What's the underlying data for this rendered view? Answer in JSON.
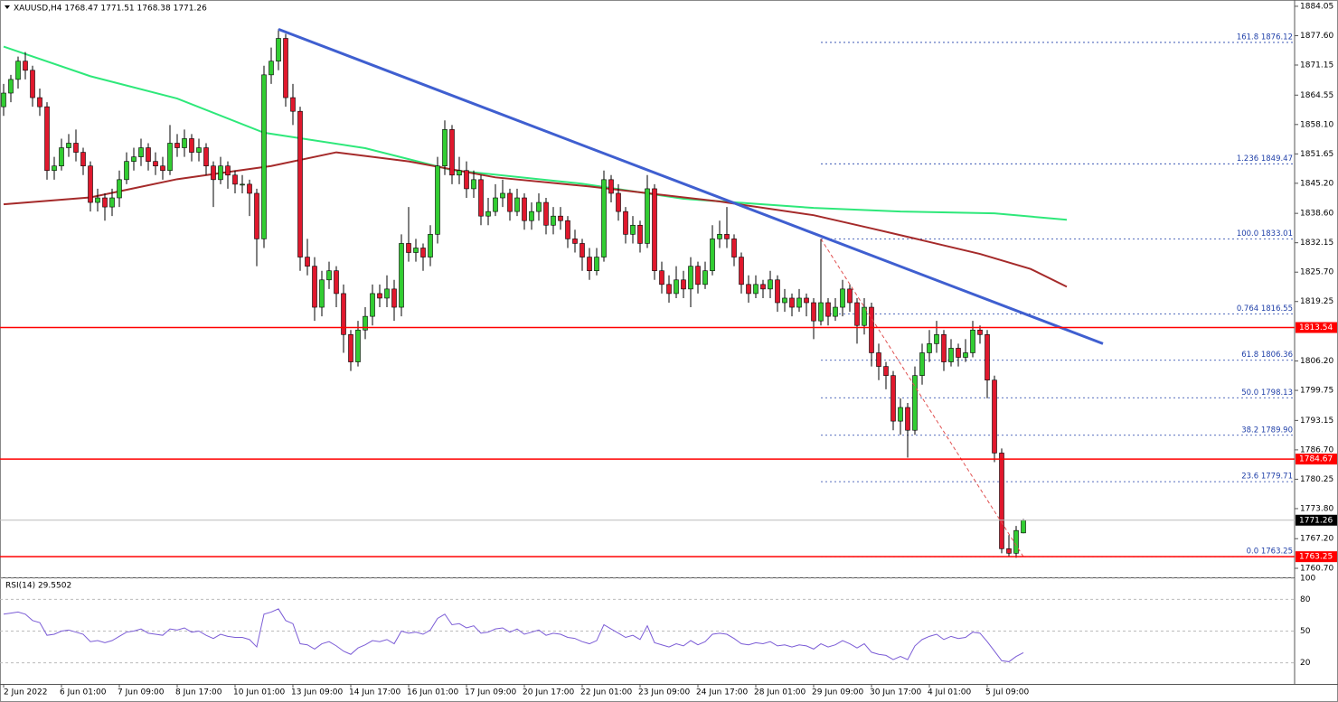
{
  "chart_data": {
    "type": "candlestick",
    "title": "XAUUSD,H4 1768.47 1771.51 1768.38 1771.26",
    "up_color": "#32cd32",
    "down_color": "#e0182d",
    "categories": [
      "2 Jun 2022",
      null,
      null,
      null,
      null,
      null,
      null,
      null,
      "6 Jun 01:00",
      null,
      null,
      null,
      null,
      null,
      null,
      null,
      "7 Jun 09:00",
      null,
      null,
      null,
      null,
      null,
      null,
      null,
      "8 Jun 17:00",
      null,
      null,
      null,
      null,
      null,
      null,
      null,
      "10 Jun 01:00",
      null,
      null,
      null,
      null,
      null,
      null,
      null,
      "13 Jun 09:00",
      null,
      null,
      null,
      null,
      null,
      null,
      null,
      "14 Jun 17:00",
      null,
      null,
      null,
      null,
      null,
      null,
      null,
      "16 Jun 01:00",
      null,
      null,
      null,
      null,
      null,
      null,
      null,
      "17 Jun 09:00",
      null,
      null,
      null,
      null,
      null,
      null,
      null,
      "20 Jun 17:00",
      null,
      null,
      null,
      null,
      null,
      null,
      null,
      "22 Jun 01:00",
      null,
      null,
      null,
      null,
      null,
      null,
      null,
      "23 Jun 09:00",
      null,
      null,
      null,
      null,
      null,
      null,
      null,
      "24 Jun 17:00",
      null,
      null,
      null,
      null,
      null,
      null,
      null,
      "28 Jun 01:00",
      null,
      null,
      null,
      null,
      null,
      null,
      null,
      "29 Jun 09:00",
      null,
      null,
      null,
      null,
      null,
      null,
      null,
      "30 Jun 17:00",
      null,
      null,
      null,
      null,
      null,
      null,
      null,
      "4 Jul 01:00",
      null,
      null,
      null,
      null,
      null,
      null,
      null,
      "5 Jul 09:00",
      null,
      null,
      null,
      null,
      null
    ],
    "ohlc": [
      [
        1862,
        1867,
        1860,
        1865
      ],
      [
        1865,
        1869,
        1863,
        1868
      ],
      [
        1868,
        1873,
        1866,
        1872
      ],
      [
        1872,
        1874,
        1868,
        1870
      ],
      [
        1870,
        1871,
        1862,
        1864
      ],
      [
        1864,
        1866,
        1860,
        1862
      ],
      [
        1862,
        1863,
        1846,
        1848
      ],
      [
        1848,
        1851,
        1846,
        1849
      ],
      [
        1849,
        1855,
        1848,
        1853
      ],
      [
        1853,
        1856,
        1851,
        1854
      ],
      [
        1854,
        1857,
        1850,
        1852
      ],
      [
        1852,
        1853,
        1847,
        1849
      ],
      [
        1849,
        1850,
        1839,
        1841
      ],
      [
        1841,
        1844,
        1839,
        1842
      ],
      [
        1842,
        1843,
        1837,
        1840
      ],
      [
        1840,
        1844,
        1838,
        1842
      ],
      [
        1842,
        1848,
        1840,
        1846
      ],
      [
        1846,
        1852,
        1845,
        1850
      ],
      [
        1850,
        1853,
        1848,
        1851
      ],
      [
        1851,
        1855,
        1849,
        1853
      ],
      [
        1853,
        1854,
        1848,
        1850
      ],
      [
        1850,
        1852,
        1847,
        1849
      ],
      [
        1849,
        1851,
        1846,
        1848
      ],
      [
        1848,
        1858,
        1847,
        1854
      ],
      [
        1854,
        1856,
        1851,
        1853
      ],
      [
        1853,
        1857,
        1851,
        1855
      ],
      [
        1855,
        1856,
        1850,
        1852
      ],
      [
        1852,
        1855,
        1850,
        1853
      ],
      [
        1853,
        1854,
        1847,
        1849
      ],
      [
        1849,
        1850,
        1840,
        1846
      ],
      [
        1846,
        1851,
        1845,
        1849
      ],
      [
        1849,
        1850,
        1844,
        1847
      ],
      [
        1847,
        1848,
        1843,
        1845
      ],
      [
        1845,
        1847,
        1843,
        1845
      ],
      [
        1845,
        1846,
        1838,
        1843
      ],
      [
        1843,
        1844,
        1827,
        1833
      ],
      [
        1833,
        1871,
        1831,
        1869
      ],
      [
        1869,
        1875,
        1867,
        1872
      ],
      [
        1872,
        1879,
        1870,
        1877
      ],
      [
        1877,
        1878,
        1862,
        1864
      ],
      [
        1864,
        1867,
        1858,
        1861
      ],
      [
        1861,
        1862,
        1826,
        1829
      ],
      [
        1829,
        1833,
        1825,
        1827
      ],
      [
        1827,
        1829,
        1815,
        1818
      ],
      [
        1818,
        1826,
        1816,
        1824
      ],
      [
        1824,
        1828,
        1822,
        1826
      ],
      [
        1826,
        1827,
        1818,
        1821
      ],
      [
        1821,
        1823,
        1808,
        1812
      ],
      [
        1812,
        1813,
        1804,
        1806
      ],
      [
        1806,
        1815,
        1805,
        1813
      ],
      [
        1813,
        1818,
        1811,
        1816
      ],
      [
        1816,
        1823,
        1814,
        1821
      ],
      [
        1821,
        1823,
        1818,
        1820
      ],
      [
        1820,
        1825,
        1818,
        1822
      ],
      [
        1822,
        1824,
        1815,
        1818
      ],
      [
        1818,
        1834,
        1816,
        1832
      ],
      [
        1832,
        1840,
        1828,
        1830
      ],
      [
        1830,
        1833,
        1828,
        1831
      ],
      [
        1831,
        1832,
        1826,
        1829
      ],
      [
        1829,
        1836,
        1827,
        1834
      ],
      [
        1834,
        1851,
        1832,
        1849
      ],
      [
        1849,
        1859,
        1847,
        1857
      ],
      [
        1857,
        1858,
        1845,
        1847
      ],
      [
        1847,
        1851,
        1845,
        1848
      ],
      [
        1848,
        1850,
        1842,
        1844
      ],
      [
        1844,
        1848,
        1842,
        1846
      ],
      [
        1846,
        1847,
        1836,
        1838
      ],
      [
        1838,
        1842,
        1836,
        1839
      ],
      [
        1839,
        1845,
        1838,
        1842
      ],
      [
        1842,
        1846,
        1840,
        1843
      ],
      [
        1843,
        1844,
        1837,
        1839
      ],
      [
        1839,
        1844,
        1838,
        1842
      ],
      [
        1842,
        1843,
        1835,
        1837
      ],
      [
        1837,
        1841,
        1835,
        1839
      ],
      [
        1839,
        1843,
        1837,
        1841
      ],
      [
        1841,
        1842,
        1834,
        1836
      ],
      [
        1836,
        1840,
        1834,
        1838
      ],
      [
        1838,
        1840,
        1835,
        1837
      ],
      [
        1837,
        1838,
        1831,
        1833
      ],
      [
        1833,
        1835,
        1830,
        1832
      ],
      [
        1832,
        1833,
        1826,
        1829
      ],
      [
        1829,
        1831,
        1824,
        1826
      ],
      [
        1826,
        1831,
        1825,
        1829
      ],
      [
        1829,
        1848,
        1828,
        1846
      ],
      [
        1846,
        1847,
        1841,
        1843
      ],
      [
        1843,
        1845,
        1837,
        1839
      ],
      [
        1839,
        1840,
        1832,
        1834
      ],
      [
        1834,
        1838,
        1832,
        1836
      ],
      [
        1836,
        1837,
        1830,
        1832
      ],
      [
        1832,
        1847,
        1831,
        1844
      ],
      [
        1844,
        1845,
        1824,
        1826
      ],
      [
        1826,
        1828,
        1821,
        1823
      ],
      [
        1823,
        1825,
        1819,
        1821
      ],
      [
        1821,
        1827,
        1820,
        1824
      ],
      [
        1824,
        1826,
        1820,
        1822
      ],
      [
        1822,
        1829,
        1818,
        1827
      ],
      [
        1827,
        1828,
        1821,
        1823
      ],
      [
        1823,
        1828,
        1822,
        1826
      ],
      [
        1826,
        1836,
        1825,
        1833
      ],
      [
        1833,
        1837,
        1831,
        1834
      ],
      [
        1834,
        1840,
        1831,
        1833
      ],
      [
        1833,
        1834,
        1827,
        1829
      ],
      [
        1829,
        1830,
        1821,
        1823
      ],
      [
        1823,
        1825,
        1819,
        1821
      ],
      [
        1821,
        1825,
        1820,
        1823
      ],
      [
        1823,
        1824,
        1820,
        1822
      ],
      [
        1822,
        1826,
        1820,
        1824
      ],
      [
        1824,
        1825,
        1817,
        1819
      ],
      [
        1819,
        1822,
        1817,
        1820
      ],
      [
        1820,
        1821,
        1816,
        1818
      ],
      [
        1818,
        1822,
        1817,
        1820
      ],
      [
        1820,
        1821,
        1816,
        1819
      ],
      [
        1819,
        1820,
        1811,
        1815
      ],
      [
        1815,
        1833,
        1814,
        1819
      ],
      [
        1819,
        1820,
        1814,
        1816
      ],
      [
        1816,
        1820,
        1815,
        1818
      ],
      [
        1818,
        1824,
        1816,
        1822
      ],
      [
        1822,
        1823,
        1817,
        1819
      ],
      [
        1819,
        1820,
        1810,
        1814
      ],
      [
        1814,
        1820,
        1812,
        1818
      ],
      [
        1818,
        1819,
        1805,
        1808
      ],
      [
        1808,
        1810,
        1802,
        1805
      ],
      [
        1805,
        1806,
        1800,
        1803
      ],
      [
        1803,
        1804,
        1791,
        1793
      ],
      [
        1793,
        1798,
        1790,
        1796
      ],
      [
        1796,
        1797,
        1785,
        1791
      ],
      [
        1791,
        1805,
        1790,
        1803
      ],
      [
        1803,
        1810,
        1801,
        1808
      ],
      [
        1808,
        1813,
        1806,
        1810
      ],
      [
        1810,
        1815,
        1808,
        1812
      ],
      [
        1812,
        1813,
        1804,
        1806
      ],
      [
        1806,
        1811,
        1805,
        1809
      ],
      [
        1809,
        1810,
        1805,
        1807
      ],
      [
        1807,
        1811,
        1806,
        1808
      ],
      [
        1808,
        1815,
        1807,
        1813
      ],
      [
        1813,
        1814,
        1810,
        1812
      ],
      [
        1812,
        1813,
        1798,
        1802
      ],
      [
        1802,
        1803,
        1784,
        1786
      ],
      [
        1786,
        1787,
        1764,
        1765
      ],
      [
        1765,
        1768,
        1763.25,
        1764
      ],
      [
        1764,
        1770,
        1763,
        1769
      ],
      [
        1768.47,
        1771.51,
        1768.38,
        1771.26
      ]
    ],
    "ylim": [
      1758.92,
      1885.03
    ],
    "yticks": [
      1884.05,
      {
        "value": 1877.6,
        "label": "1877.60"
      },
      1871.15,
      1864.55,
      {
        "value": 1858.1,
        "label": "1858.10"
      },
      1851.65,
      {
        "value": 1845.2,
        "label": "1845.20"
      },
      {
        "value": 1838.6,
        "label": "1838.60"
      },
      1832.15,
      {
        "value": 1825.7,
        "label": "1825.70"
      },
      1819.25,
      {
        "value": 1806.2,
        "label": "1806.20"
      },
      1799.75,
      1793.15,
      {
        "value": 1786.7,
        "label": "1786.70"
      },
      1780.25,
      {
        "value": 1773.8,
        "label": "1773.80"
      },
      {
        "value": 1767.2,
        "label": "1767.20"
      },
      {
        "value": 1760.7,
        "label": "1760.70"
      }
    ],
    "moving_averages": [
      {
        "color": "#2ee87a",
        "x": [
          0,
          12,
          24,
          36,
          50,
          62,
          80,
          94,
          112,
          124,
          137,
          147
        ],
        "values": [
          1875.2,
          1868.7,
          1863.8,
          1856.3,
          1852.9,
          1848.1,
          1845.1,
          1841.8,
          1839.8,
          1839.0,
          1838.6,
          1837.2
        ]
      },
      {
        "color": "#a52a2a",
        "x": [
          0,
          12,
          24,
          37,
          46,
          56,
          68,
          81,
          99,
          112,
          120,
          127,
          135,
          142,
          147
        ],
        "values": [
          1840.6,
          1842.1,
          1846.1,
          1849.0,
          1852.0,
          1850.0,
          1846.5,
          1844.5,
          1841.2,
          1838.2,
          1835.3,
          1832.7,
          1829.7,
          1826.4,
          1822.5
        ]
      }
    ],
    "trendline": {
      "color": "#3f5fd0",
      "x": [
        38,
        152
      ],
      "values": [
        1879,
        1810
      ]
    },
    "fib_line": {
      "color": "#e05050",
      "x": [
        113,
        141
      ],
      "values": [
        1833.01,
        1763.25
      ]
    },
    "fib_start": 113,
    "fib_levels": [
      {
        "value": 1876.12,
        "label": "161.8 1876.12"
      },
      {
        "value": 1849.47,
        "label": "1.236 1849.47"
      },
      {
        "value": 1833.01,
        "label": "100.0 1833.01"
      },
      {
        "value": 1816.55,
        "label": "0.764 1816.55"
      },
      {
        "value": 1806.36,
        "label": "61.8 1806.36"
      },
      {
        "value": 1798.13,
        "label": "50.0 1798.13"
      },
      {
        "value": 1789.9,
        "label": "38.2 1789.90"
      },
      {
        "value": 1779.71,
        "label": "23.6 1779.71"
      },
      {
        "value": 1763.25,
        "label": "0.0 1763.25"
      }
    ],
    "levels": [
      1813.54,
      1784.67,
      1763.25
    ],
    "level_color": "#ff0000",
    "current_price": 1771.26,
    "rsi": {
      "title": "RSI(14) 29.5502",
      "color": "#7b5cd6",
      "ylim": [
        0,
        100
      ],
      "yticks": [
        100,
        80,
        50,
        20
      ],
      "values": [
        66,
        67,
        68,
        66,
        60,
        58,
        46,
        47,
        50,
        51,
        49,
        47,
        40,
        41,
        39,
        41,
        45,
        49,
        50,
        52,
        48,
        47,
        46,
        52,
        51,
        53,
        49,
        50,
        46,
        43,
        47,
        45,
        44,
        44,
        42,
        35,
        66,
        68,
        71,
        60,
        57,
        38,
        37,
        33,
        38,
        40,
        36,
        31,
        28,
        34,
        37,
        41,
        40,
        42,
        38,
        50,
        48,
        49,
        47,
        51,
        62,
        66,
        56,
        57,
        53,
        55,
        48,
        49,
        52,
        53,
        49,
        52,
        47,
        49,
        51,
        46,
        48,
        47,
        44,
        43,
        40,
        38,
        41,
        56,
        52,
        48,
        44,
        46,
        42,
        55,
        39,
        37,
        35,
        38,
        36,
        41,
        37,
        40,
        47,
        48,
        47,
        43,
        38,
        37,
        39,
        38,
        40,
        36,
        37,
        35,
        37,
        36,
        33,
        38,
        35,
        37,
        41,
        38,
        34,
        38,
        30,
        28,
        27,
        23,
        26,
        23,
        36,
        42,
        45,
        47,
        42,
        45,
        43,
        44,
        49,
        48,
        40,
        31,
        22,
        21,
        26,
        29.5502
      ]
    }
  }
}
